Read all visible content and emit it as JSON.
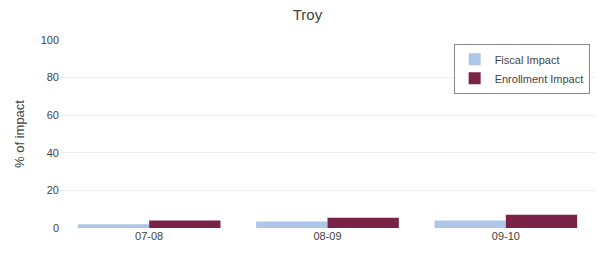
{
  "chart_data": {
    "type": "bar",
    "title": "Troy",
    "ylabel": "% of impact",
    "categories": [
      "07-08",
      "08-09",
      "09-10"
    ],
    "series": [
      {
        "name": "Fiscal Impact",
        "color": "#aec6e8",
        "values": [
          2,
          3.5,
          4
        ]
      },
      {
        "name": "Enrollment Impact",
        "color": "#7b2346",
        "values": [
          4,
          5.5,
          7
        ]
      }
    ],
    "ylim": [
      0,
      100
    ],
    "yticks": [
      0,
      20,
      40,
      60,
      80,
      100
    ],
    "grid": true,
    "legend": "upper right"
  }
}
